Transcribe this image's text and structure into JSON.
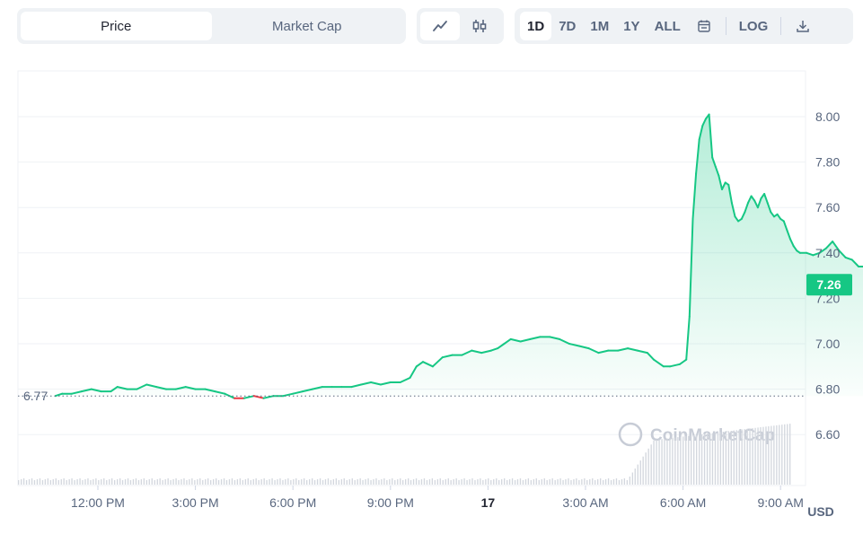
{
  "toolbar": {
    "metric_tabs": [
      {
        "label": "Price",
        "active": true
      },
      {
        "label": "Market Cap",
        "active": false
      }
    ],
    "chart_type_buttons": [
      {
        "icon": "line-chart-icon",
        "active": true
      },
      {
        "icon": "candlestick-icon",
        "active": false
      }
    ],
    "ranges": [
      {
        "label": "1D",
        "active": true
      },
      {
        "label": "7D",
        "active": false
      },
      {
        "label": "1M",
        "active": false
      },
      {
        "label": "1Y",
        "active": false
      },
      {
        "label": "ALL",
        "active": false
      }
    ],
    "calendar_icon": "calendar-icon",
    "log_label": "LOG",
    "download_icon": "download-icon"
  },
  "chart_data": {
    "type": "area",
    "x_ticks": [
      {
        "label": "12:00 PM",
        "t": 0,
        "bold": false
      },
      {
        "label": "3:00 PM",
        "t": 3,
        "bold": false
      },
      {
        "label": "6:00 PM",
        "t": 6,
        "bold": false
      },
      {
        "label": "9:00 PM",
        "t": 9,
        "bold": false
      },
      {
        "label": "17",
        "t": 12,
        "bold": true
      },
      {
        "label": "3:00 AM",
        "t": 15,
        "bold": false
      },
      {
        "label": "6:00 AM",
        "t": 18,
        "bold": false
      },
      {
        "label": "9:00 AM",
        "t": 21,
        "bold": false
      }
    ],
    "y_ticks": [
      "8.00",
      "7.80",
      "7.60",
      "7.40",
      "7.20",
      "7.00",
      "6.80",
      "6.60"
    ],
    "ylim": [
      6.4,
      8.2
    ],
    "unit_label": "USD",
    "baseline": {
      "value": 6.77,
      "label": "6.77"
    },
    "current": {
      "value": 7.26,
      "label": "7.26"
    },
    "colors": {
      "up": "#16c784",
      "down": "#ea3943",
      "current_badge": "#16c784"
    },
    "watermark": "CoinMarketCap",
    "series": [
      {
        "values": [
          [
            -1.31,
            6.77
          ],
          [
            -1.1,
            6.78
          ],
          [
            -0.8,
            6.78
          ],
          [
            -0.5,
            6.79
          ],
          [
            -0.2,
            6.8
          ],
          [
            0.1,
            6.79
          ],
          [
            0.4,
            6.79
          ],
          [
            0.6,
            6.81
          ],
          [
            0.9,
            6.8
          ],
          [
            1.2,
            6.8
          ],
          [
            1.5,
            6.82
          ],
          [
            1.8,
            6.81
          ],
          [
            2.1,
            6.8
          ],
          [
            2.4,
            6.8
          ],
          [
            2.7,
            6.81
          ],
          [
            3.0,
            6.8
          ],
          [
            3.3,
            6.8
          ],
          [
            3.6,
            6.79
          ],
          [
            3.9,
            6.78
          ],
          [
            4.2,
            6.76
          ],
          [
            4.5,
            6.76
          ],
          [
            4.8,
            6.77
          ],
          [
            5.1,
            6.76
          ],
          [
            5.4,
            6.77
          ],
          [
            5.7,
            6.77
          ],
          [
            6.0,
            6.78
          ],
          [
            6.3,
            6.79
          ],
          [
            6.6,
            6.8
          ],
          [
            6.9,
            6.81
          ],
          [
            7.2,
            6.81
          ],
          [
            7.5,
            6.81
          ],
          [
            7.8,
            6.81
          ],
          [
            8.1,
            6.82
          ],
          [
            8.4,
            6.83
          ],
          [
            8.7,
            6.82
          ],
          [
            9.0,
            6.83
          ],
          [
            9.3,
            6.83
          ],
          [
            9.6,
            6.85
          ],
          [
            9.8,
            6.9
          ],
          [
            10.0,
            6.92
          ],
          [
            10.3,
            6.9
          ],
          [
            10.6,
            6.94
          ],
          [
            10.9,
            6.95
          ],
          [
            11.2,
            6.95
          ],
          [
            11.5,
            6.97
          ],
          [
            11.8,
            6.96
          ],
          [
            12.1,
            6.97
          ],
          [
            12.3,
            6.98
          ],
          [
            12.5,
            7.0
          ],
          [
            12.7,
            7.02
          ],
          [
            13.0,
            7.01
          ],
          [
            13.3,
            7.02
          ],
          [
            13.6,
            7.03
          ],
          [
            13.9,
            7.03
          ],
          [
            14.2,
            7.02
          ],
          [
            14.5,
            7.0
          ],
          [
            14.8,
            6.99
          ],
          [
            15.1,
            6.98
          ],
          [
            15.4,
            6.96
          ],
          [
            15.7,
            6.97
          ],
          [
            16.0,
            6.97
          ],
          [
            16.3,
            6.98
          ],
          [
            16.6,
            6.97
          ],
          [
            16.9,
            6.96
          ],
          [
            17.1,
            6.93
          ],
          [
            17.4,
            6.9
          ],
          [
            17.6,
            6.9
          ],
          [
            17.9,
            6.91
          ],
          [
            18.1,
            6.93
          ],
          [
            18.2,
            7.12
          ],
          [
            18.3,
            7.55
          ],
          [
            18.4,
            7.75
          ],
          [
            18.5,
            7.9
          ],
          [
            18.6,
            7.96
          ],
          [
            18.7,
            7.99
          ],
          [
            18.8,
            8.01
          ],
          [
            18.9,
            7.82
          ],
          [
            19.0,
            7.78
          ],
          [
            19.1,
            7.74
          ],
          [
            19.2,
            7.68
          ],
          [
            19.3,
            7.71
          ],
          [
            19.4,
            7.7
          ],
          [
            19.5,
            7.62
          ],
          [
            19.6,
            7.56
          ],
          [
            19.7,
            7.54
          ],
          [
            19.8,
            7.55
          ],
          [
            19.9,
            7.58
          ],
          [
            20.0,
            7.62
          ],
          [
            20.1,
            7.65
          ],
          [
            20.2,
            7.63
          ],
          [
            20.3,
            7.6
          ],
          [
            20.4,
            7.64
          ],
          [
            20.5,
            7.66
          ],
          [
            20.6,
            7.62
          ],
          [
            20.7,
            7.58
          ],
          [
            20.8,
            7.56
          ],
          [
            20.9,
            7.57
          ],
          [
            21.0,
            7.55
          ],
          [
            21.1,
            7.54
          ],
          [
            21.2,
            7.5
          ],
          [
            21.3,
            7.46
          ],
          [
            21.4,
            7.43
          ],
          [
            21.5,
            7.41
          ],
          [
            21.6,
            7.4
          ],
          [
            21.8,
            7.4
          ],
          [
            22.0,
            7.39
          ],
          [
            22.2,
            7.4
          ],
          [
            22.4,
            7.42
          ],
          [
            22.6,
            7.45
          ],
          [
            22.8,
            7.41
          ],
          [
            23.0,
            7.38
          ],
          [
            23.2,
            7.37
          ],
          [
            23.4,
            7.34
          ],
          [
            23.6,
            7.34
          ],
          [
            23.8,
            7.33
          ],
          [
            24.0,
            7.3
          ],
          [
            24.1,
            7.25
          ],
          [
            24.25,
            7.26
          ]
        ]
      }
    ]
  }
}
